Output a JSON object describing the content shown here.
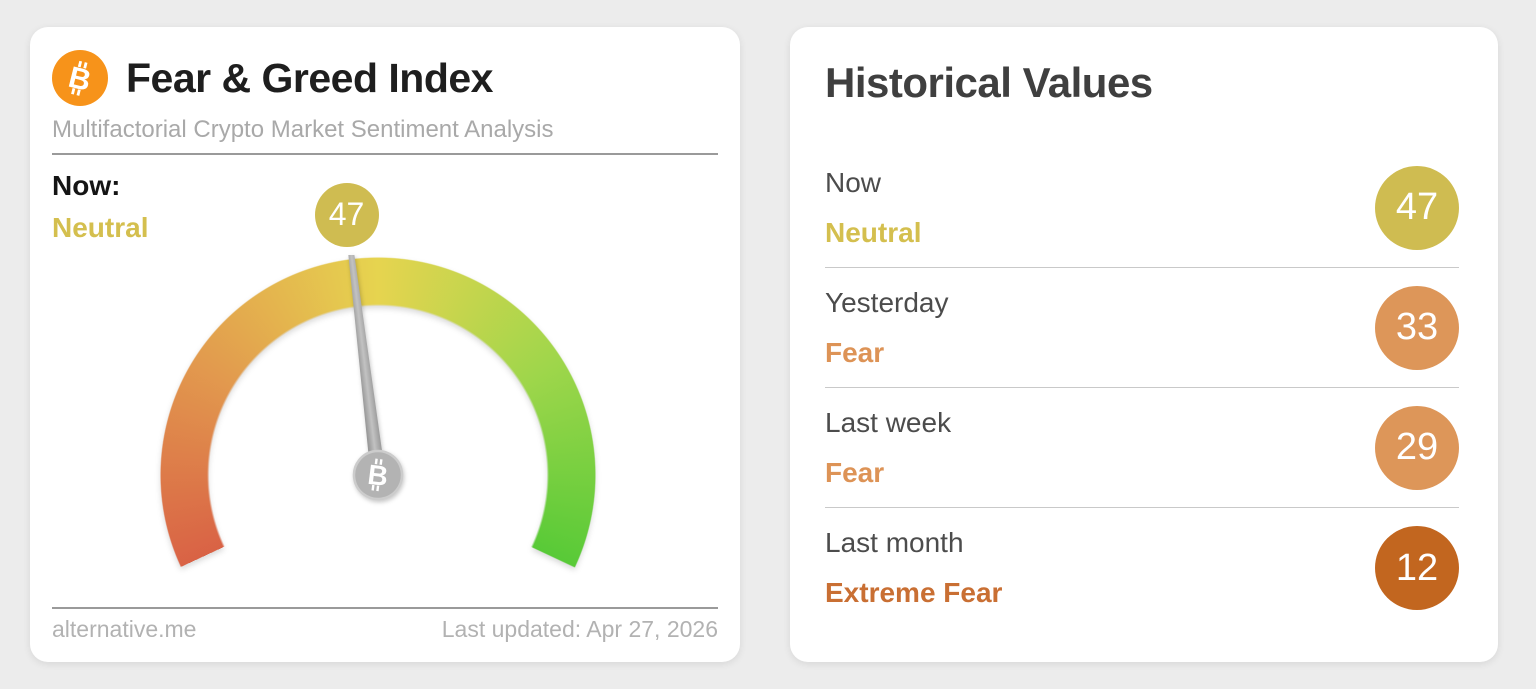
{
  "page_background": "#ececec",
  "icons": {
    "bitcoin_glyph": "B"
  },
  "gauge_card": {
    "title": "Fear & Greed Index",
    "subtitle": "Multifactorial Crypto Market Sentiment Analysis",
    "bitcoin_orange": "#f7931a",
    "now_label": "Now:",
    "now_classification": "Neutral",
    "now_classification_color": "#d4bf4e",
    "now_value": "47",
    "value_bubble_color": "#cfbc51",
    "footer_source": "alternative.me",
    "footer_updated": "Last updated: Apr 27, 2026"
  },
  "historical_card": {
    "title": "Historical Values",
    "rows": [
      {
        "label": "Now",
        "classification": "Neutral",
        "value": "47",
        "classification_color": "#d4bf4e",
        "badge_color": "#cfbc51"
      },
      {
        "label": "Yesterday",
        "classification": "Fear",
        "value": "33",
        "classification_color": "#dd9356",
        "badge_color": "#dd9659"
      },
      {
        "label": "Last week",
        "classification": "Fear",
        "value": "29",
        "classification_color": "#dd9356",
        "badge_color": "#dd9659"
      },
      {
        "label": "Last month",
        "classification": "Extreme Fear",
        "value": "12",
        "classification_color": "#c96f33",
        "badge_color": "#c2661f"
      }
    ]
  },
  "chart_data": {
    "type": "gauge",
    "title": "Fear & Greed Index",
    "min": 0,
    "max": 100,
    "value": 47,
    "classification": "Neutral",
    "start_angle_deg": -115,
    "sweep_deg": 230,
    "color_scale": [
      "#d96245",
      "#e29a4e",
      "#e6d44f",
      "#9fd64b",
      "#58ca37"
    ],
    "needle_color": "#a9a9a9",
    "historical": [
      {
        "label": "Now",
        "value": 47,
        "classification": "Neutral"
      },
      {
        "label": "Yesterday",
        "value": 33,
        "classification": "Fear"
      },
      {
        "label": "Last week",
        "value": 29,
        "classification": "Fear"
      },
      {
        "label": "Last month",
        "value": 12,
        "classification": "Extreme Fear"
      }
    ]
  }
}
